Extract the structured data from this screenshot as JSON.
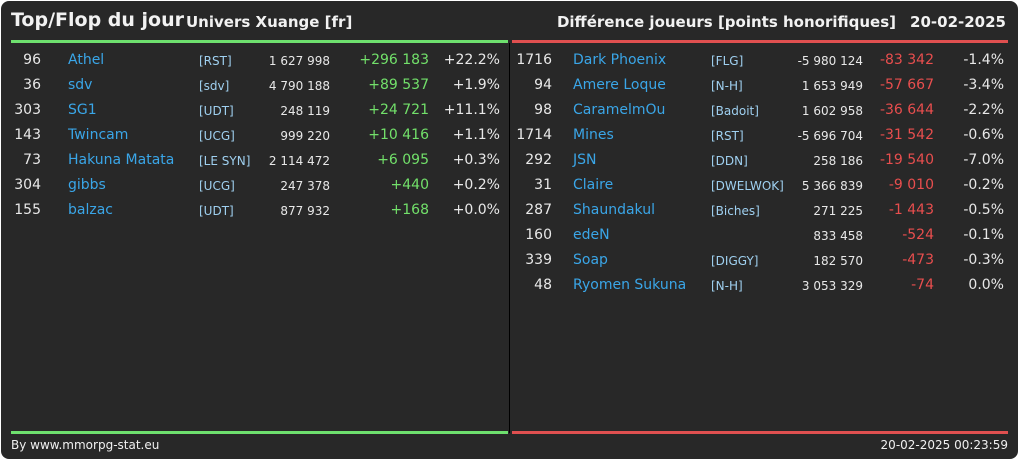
{
  "header": {
    "title": "Top/Flop du jour",
    "universe": "Univers Xuange [fr]",
    "metric": "Différence joueurs [points honorifiques]",
    "date": "20-02-2025"
  },
  "colors": {
    "top_accent": "#6ee06e",
    "flop_accent": "#e05050",
    "name_link": "#3aa6e8"
  },
  "top": [
    {
      "rank": "96",
      "name": "Athel",
      "alliance": "[RST]",
      "total": "1 627 998",
      "delta": "+296 183",
      "pct": "+22.2%"
    },
    {
      "rank": "36",
      "name": "sdv",
      "alliance": "[sdv]",
      "total": "4 790 188",
      "delta": "+89 537",
      "pct": "+1.9%"
    },
    {
      "rank": "303",
      "name": "SG1",
      "alliance": "[UDT]",
      "total": "248 119",
      "delta": "+24 721",
      "pct": "+11.1%"
    },
    {
      "rank": "143",
      "name": "Twincam",
      "alliance": "[UCG]",
      "total": "999 220",
      "delta": "+10 416",
      "pct": "+1.1%"
    },
    {
      "rank": "73",
      "name": "Hakuna Matata",
      "alliance": "[LE SYN]",
      "total": "2 114 472",
      "delta": "+6 095",
      "pct": "+0.3%"
    },
    {
      "rank": "304",
      "name": "gibbs",
      "alliance": "[UCG]",
      "total": "247 378",
      "delta": "+440",
      "pct": "+0.2%"
    },
    {
      "rank": "155",
      "name": "balzac",
      "alliance": "[UDT]",
      "total": "877 932",
      "delta": "+168",
      "pct": "+0.0%"
    }
  ],
  "flop": [
    {
      "rank": "1716",
      "name": "Dark Phoenix",
      "alliance": "[FLG]",
      "total": "-5 980 124",
      "delta": "-83 342",
      "pct": "-1.4%"
    },
    {
      "rank": "94",
      "name": "Amere Loque",
      "alliance": "[N-H]",
      "total": "1 653 949",
      "delta": "-57 667",
      "pct": "-3.4%"
    },
    {
      "rank": "98",
      "name": "CaramelmOu",
      "alliance": "[Badoit]",
      "total": "1 602 958",
      "delta": "-36 644",
      "pct": "-2.2%"
    },
    {
      "rank": "1714",
      "name": "Mines",
      "alliance": "[RST]",
      "total": "-5 696 704",
      "delta": "-31 542",
      "pct": "-0.6%"
    },
    {
      "rank": "292",
      "name": "JSN",
      "alliance": "[DDN]",
      "total": "258 186",
      "delta": "-19 540",
      "pct": "-7.0%"
    },
    {
      "rank": "31",
      "name": "Claire",
      "alliance": "[DWELWOK]",
      "total": "5 366 839",
      "delta": "-9 010",
      "pct": "-0.2%"
    },
    {
      "rank": "287",
      "name": "Shaundakul",
      "alliance": "[Biches]",
      "total": "271 225",
      "delta": "-1 443",
      "pct": "-0.5%"
    },
    {
      "rank": "160",
      "name": "edeN",
      "alliance": "",
      "total": "833 458",
      "delta": "-524",
      "pct": "-0.1%"
    },
    {
      "rank": "339",
      "name": "Soap",
      "alliance": "[DIGGY]",
      "total": "182 570",
      "delta": "-473",
      "pct": "-0.3%"
    },
    {
      "rank": "48",
      "name": "Ryomen Sukuna",
      "alliance": "[N-H]",
      "total": "3 053 329",
      "delta": "-74",
      "pct": "0.0%"
    }
  ],
  "footer": {
    "credit": "By www.mmorpg-stat.eu",
    "timestamp": "20-02-2025 00:23:59"
  }
}
